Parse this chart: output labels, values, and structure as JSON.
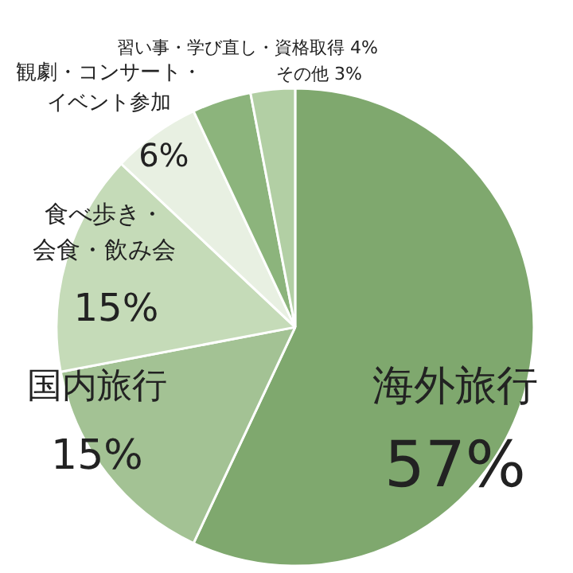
{
  "chart_data": {
    "type": "pie",
    "categories": [
      "海外旅行",
      "国内旅行",
      "食べ歩き・会食・飲み会",
      "観劇・コンサート・イベント参加",
      "習い事・学び直し・資格取得",
      "その他"
    ],
    "values": [
      57,
      15,
      15,
      6,
      4,
      3
    ],
    "value_labels": [
      "57%",
      "15%",
      "15%",
      "6%",
      "4%",
      "3%"
    ],
    "colors": [
      "#7fa86e",
      "#a3c294",
      "#c5dbb8",
      "#e8f0e2",
      "#8cb47c",
      "#b2cfa4"
    ]
  }
}
